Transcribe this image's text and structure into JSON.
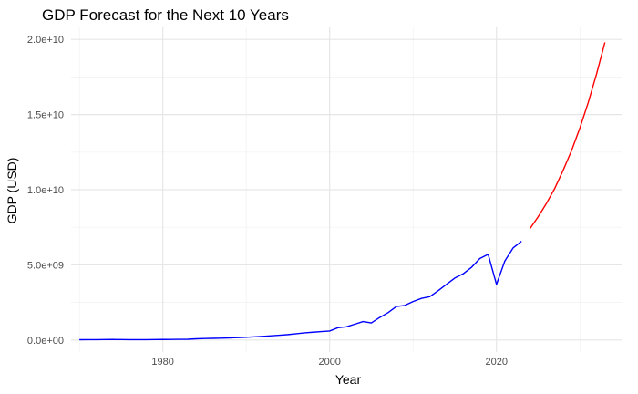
{
  "chart_data": {
    "type": "line",
    "title": "GDP Forecast for the Next 10 Years",
    "xlabel": "Year",
    "ylabel": "GDP (USD)",
    "xlim": [
      1969,
      2035
    ],
    "ylim": [
      -800000000,
      20800000000
    ],
    "x_ticks": [
      1980,
      2000,
      2020
    ],
    "x_tick_labels": [
      "1980",
      "2000",
      "2020"
    ],
    "y_ticks": [
      0,
      5000000000,
      10000000000,
      15000000000,
      20000000000
    ],
    "y_tick_labels": [
      "0.0e+00",
      "5.0e+09",
      "1.0e+10",
      "1.5e+10",
      "2.0e+10"
    ],
    "grid": true,
    "legend": "none",
    "series": [
      {
        "color": "#0000ff",
        "x": [
          1970,
          1971,
          1972,
          1973,
          1974,
          1975,
          1976,
          1977,
          1978,
          1979,
          1980,
          1981,
          1982,
          1983,
          1984,
          1985,
          1986,
          1987,
          1988,
          1989,
          1990,
          1991,
          1992,
          1993,
          1994,
          1995,
          1996,
          1997,
          1998,
          1999,
          2000,
          2001,
          2002,
          2003,
          2004,
          2005,
          2006,
          2007,
          2008,
          2009,
          2010,
          2011,
          2012,
          2013,
          2014,
          2015,
          2016,
          2017,
          2018,
          2019,
          2020,
          2021,
          2022,
          2023
        ],
        "y": [
          20000000,
          22000000,
          25000000,
          28000000,
          35000000,
          30000000,
          25000000,
          22000000,
          25000000,
          30000000,
          35000000,
          40000000,
          45000000,
          50000000,
          80000000,
          100000000,
          110000000,
          120000000,
          140000000,
          160000000,
          180000000,
          210000000,
          240000000,
          280000000,
          320000000,
          360000000,
          420000000,
          480000000,
          520000000,
          560000000,
          600000000,
          820000000,
          880000000,
          1050000000,
          1230000000,
          1140000000,
          1500000000,
          1820000000,
          2230000000,
          2300000000,
          2560000000,
          2770000000,
          2880000000,
          3280000000,
          3700000000,
          4120000000,
          4400000000,
          4830000000,
          5420000000,
          5700000000,
          3700000000,
          5250000000,
          6130000000,
          6570000000
        ]
      },
      {
        "color": "#ff0000",
        "x": [
          2024,
          2025,
          2026,
          2027,
          2028,
          2029,
          2030,
          2031,
          2032,
          2033
        ],
        "y": [
          7400000000,
          8200000000,
          9100000000,
          10100000000,
          11300000000,
          12600000000,
          14100000000,
          15800000000,
          17700000000,
          19800000000
        ]
      }
    ]
  }
}
